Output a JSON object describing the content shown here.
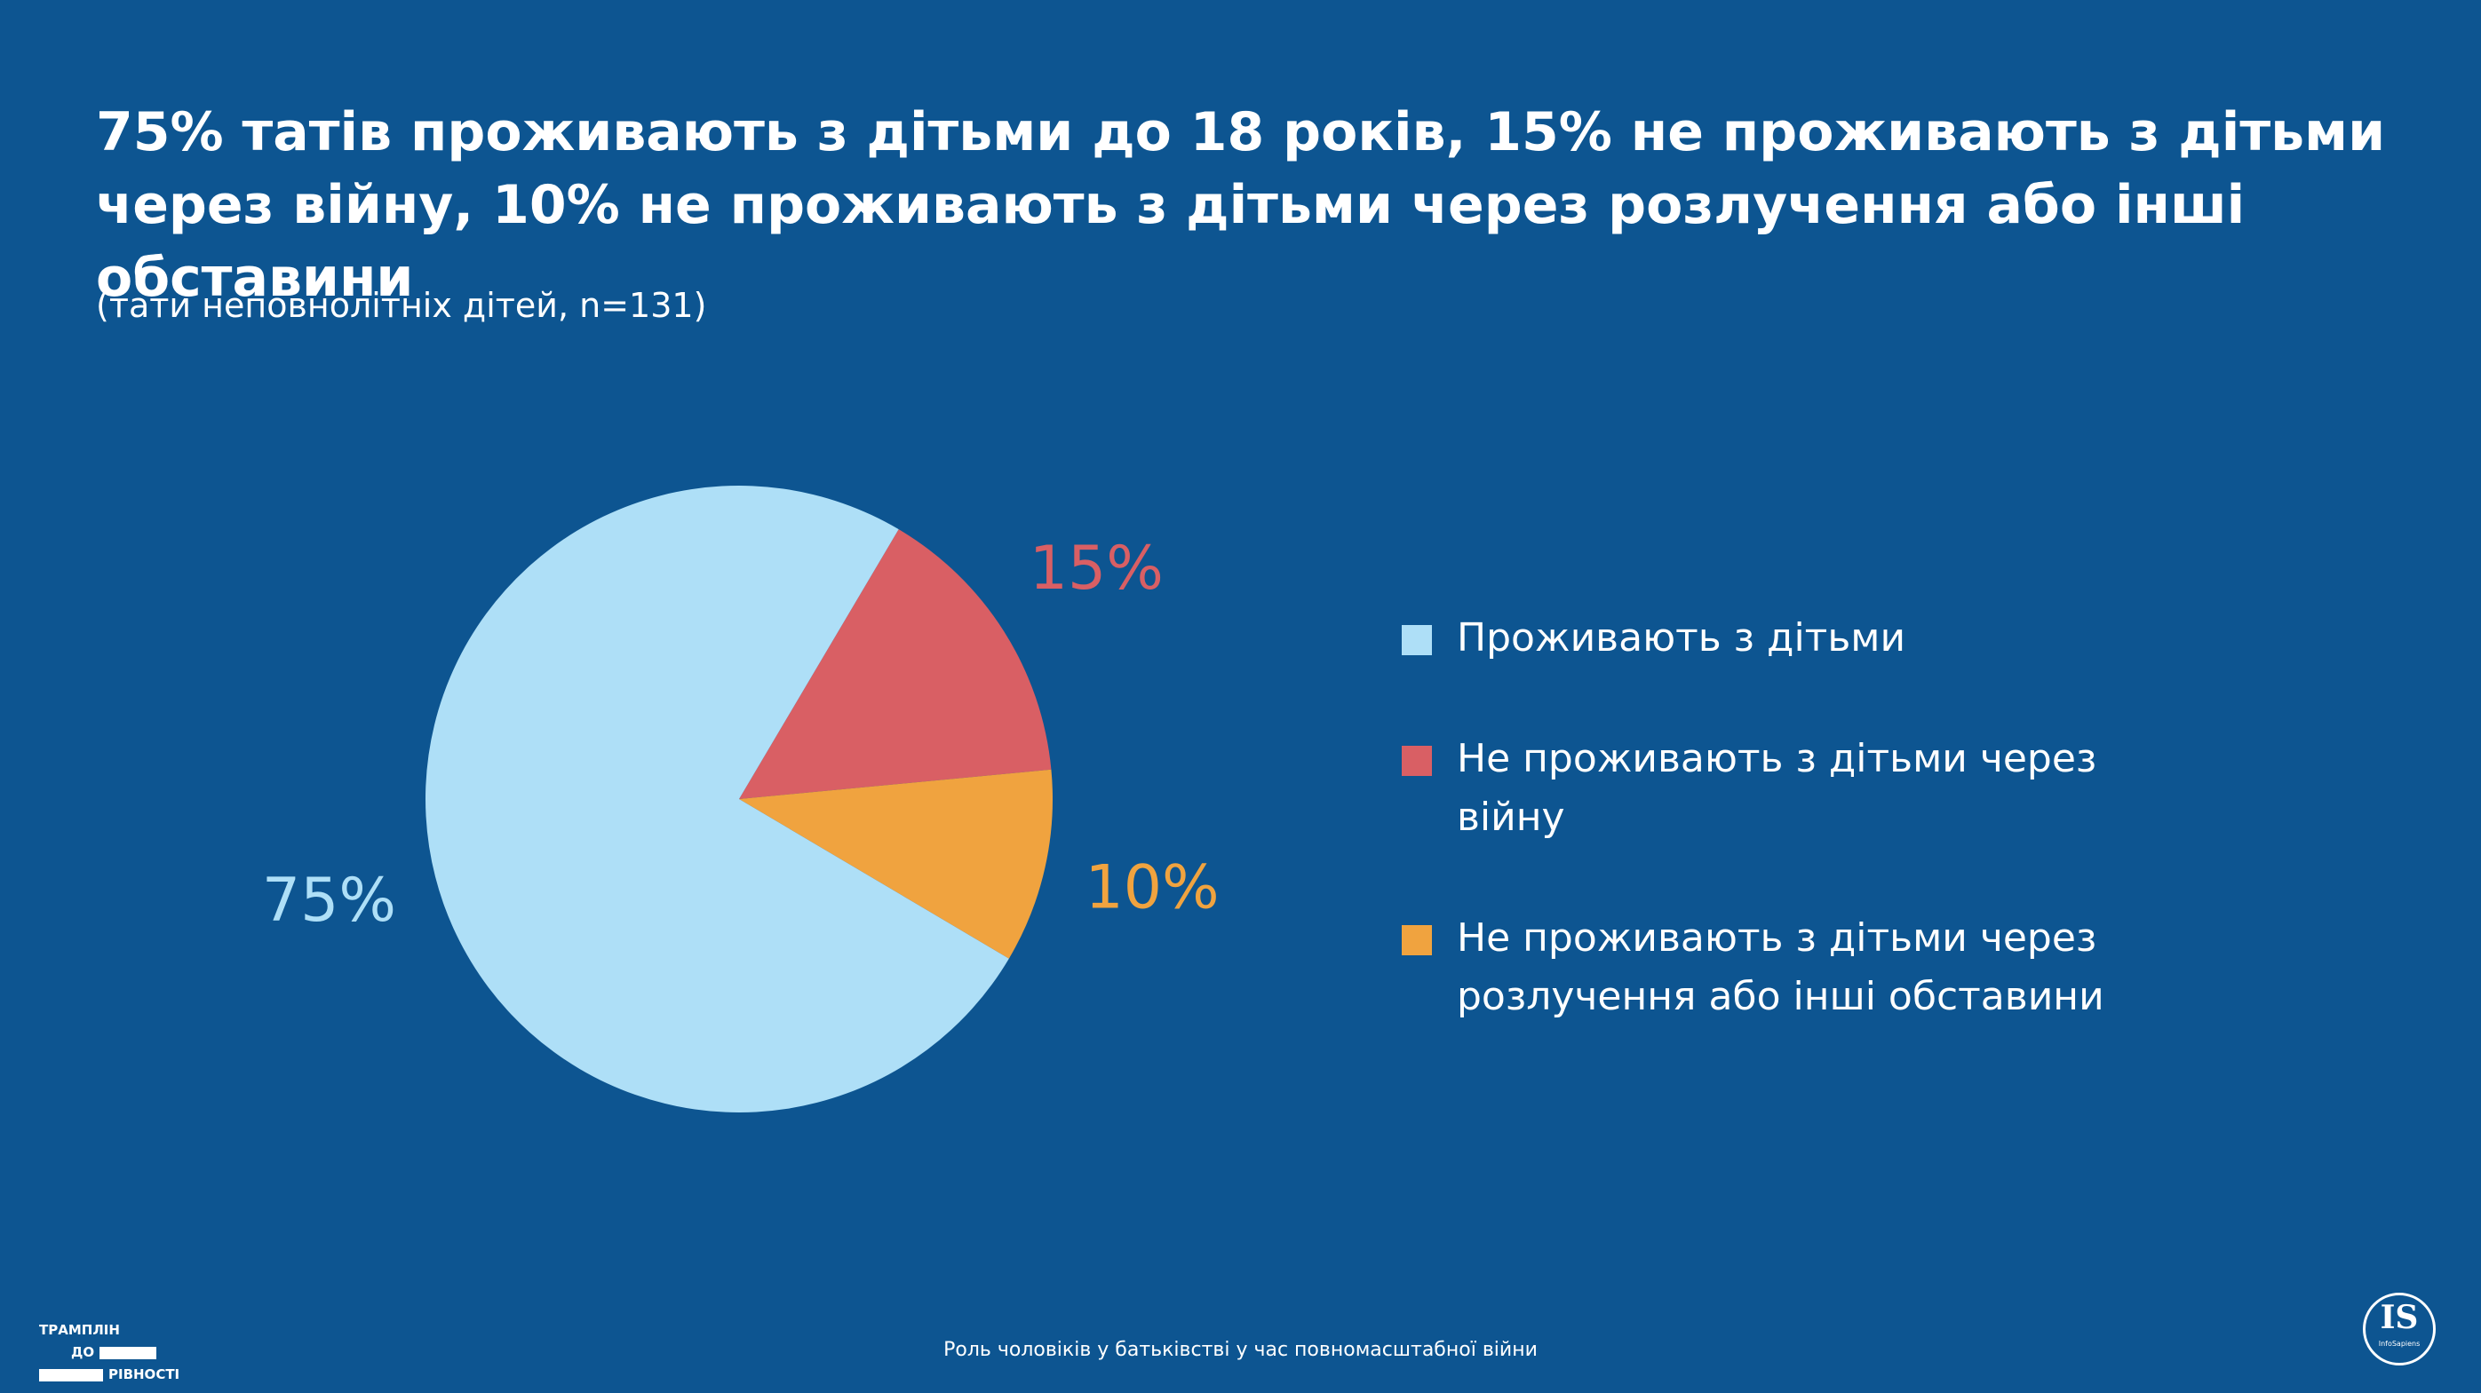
{
  "chart_data": {
    "type": "pie",
    "title": "75% татів проживають з дітьми до 18 років, 15% не проживають з дітьми через війну, 10% не проживають з дітьми через розлучення або інші обставини",
    "subtitle": "(тати неповнолітніх дітей, n=131)",
    "categories": [
      "Проживають з дітьми",
      "Не проживають з дітьми через війну",
      "Не проживають з дітьми через розлучення або інші обставини"
    ],
    "values": [
      75,
      15,
      10
    ],
    "value_labels": [
      "75%",
      "15%",
      "10%"
    ],
    "colors": [
      "#aedff7",
      "#d95f64",
      "#f0a33f"
    ],
    "legend": "right"
  },
  "footer": {
    "caption": "Роль чоловіків у батьківстві у час повномасштабної війни",
    "logo_left": [
      "ТРАМПЛІН",
      "ДО",
      "РІВНОСТІ"
    ],
    "logo_right": "IS",
    "logo_right_sub": "InfoSapiens"
  }
}
